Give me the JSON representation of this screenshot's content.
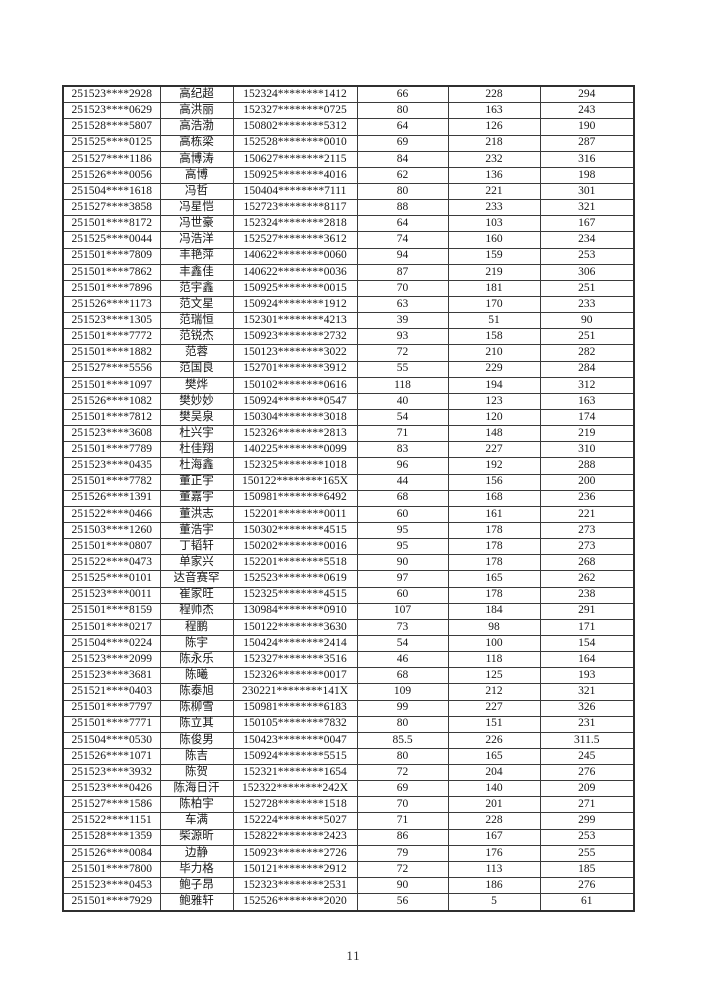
{
  "document": {
    "page_number": "11"
  },
  "colors": {
    "background": "#ffffff",
    "text": "#161616",
    "grid_line": "#3b3b3b"
  },
  "table": {
    "column_names": [
      "exam-number",
      "candidate-name",
      "id-number",
      "score-1",
      "score-2",
      "total-score"
    ],
    "rows": [
      [
        "251523****2928",
        "高纪超",
        "152324********1412",
        "66",
        "228",
        "294"
      ],
      [
        "251523****0629",
        "高洪丽",
        "152327********0725",
        "80",
        "163",
        "243"
      ],
      [
        "251528****5807",
        "高浩渤",
        "150802********5312",
        "64",
        "126",
        "190"
      ],
      [
        "251525****0125",
        "高栋梁",
        "152528********0010",
        "69",
        "218",
        "287"
      ],
      [
        "251527****1186",
        "高博涛",
        "150627********2115",
        "84",
        "232",
        "316"
      ],
      [
        "251526****0056",
        "高博",
        "150925********4016",
        "62",
        "136",
        "198"
      ],
      [
        "251504****1618",
        "冯哲",
        "150404********7111",
        "80",
        "221",
        "301"
      ],
      [
        "251527****3858",
        "冯星恺",
        "152723********8117",
        "88",
        "233",
        "321"
      ],
      [
        "251501****8172",
        "冯世豪",
        "152324********2818",
        "64",
        "103",
        "167"
      ],
      [
        "251525****0044",
        "冯浩洋",
        "152527********3612",
        "74",
        "160",
        "234"
      ],
      [
        "251501****7809",
        "丰艳萍",
        "140622********0060",
        "94",
        "159",
        "253"
      ],
      [
        "251501****7862",
        "丰鑫佳",
        "140622********0036",
        "87",
        "219",
        "306"
      ],
      [
        "251501****7896",
        "范宇鑫",
        "150925********0015",
        "70",
        "181",
        "251"
      ],
      [
        "251526****1173",
        "范文星",
        "150924********1912",
        "63",
        "170",
        "233"
      ],
      [
        "251523****1305",
        "范瑞恒",
        "152301********4213",
        "39",
        "51",
        "90"
      ],
      [
        "251501****7772",
        "范锐杰",
        "150923********2732",
        "93",
        "158",
        "251"
      ],
      [
        "251501****1882",
        "范蓉",
        "150123********3022",
        "72",
        "210",
        "282"
      ],
      [
        "251527****5556",
        "范国良",
        "152701********3912",
        "55",
        "229",
        "284"
      ],
      [
        "251501****1097",
        "樊烨",
        "150102********0616",
        "118",
        "194",
        "312"
      ],
      [
        "251526****1082",
        "樊妙妙",
        "150924********0547",
        "40",
        "123",
        "163"
      ],
      [
        "251501****7812",
        "樊吴泉",
        "150304********3018",
        "54",
        "120",
        "174"
      ],
      [
        "251523****3608",
        "杜兴宇",
        "152326********2813",
        "71",
        "148",
        "219"
      ],
      [
        "251501****7789",
        "杜佳翔",
        "140225********0099",
        "83",
        "227",
        "310"
      ],
      [
        "251523****0435",
        "杜海鑫",
        "152325********1018",
        "96",
        "192",
        "288"
      ],
      [
        "251501****7782",
        "董正宇",
        "150122********165X",
        "44",
        "156",
        "200"
      ],
      [
        "251526****1391",
        "董嘉宇",
        "150981********6492",
        "68",
        "168",
        "236"
      ],
      [
        "251522****0466",
        "董洪志",
        "152201********0011",
        "60",
        "161",
        "221"
      ],
      [
        "251503****1260",
        "董浩宇",
        "150302********4515",
        "95",
        "178",
        "273"
      ],
      [
        "251501****0807",
        "丁韬轩",
        "150202********0016",
        "95",
        "178",
        "273"
      ],
      [
        "251522****0473",
        "单家兴",
        "152201********5518",
        "90",
        "178",
        "268"
      ],
      [
        "251525****0101",
        "达音赛罕",
        "152523********0619",
        "97",
        "165",
        "262"
      ],
      [
        "251523****0011",
        "崔家旺",
        "152325********4515",
        "60",
        "178",
        "238"
      ],
      [
        "251501****8159",
        "程帅杰",
        "130984********0910",
        "107",
        "184",
        "291"
      ],
      [
        "251501****0217",
        "程鹏",
        "150122********3630",
        "73",
        "98",
        "171"
      ],
      [
        "251504****0224",
        "陈宇",
        "150424********2414",
        "54",
        "100",
        "154"
      ],
      [
        "251523****2099",
        "陈永乐",
        "152327********3516",
        "46",
        "118",
        "164"
      ],
      [
        "251523****3681",
        "陈曦",
        "152326********0017",
        "68",
        "125",
        "193"
      ],
      [
        "251521****0403",
        "陈泰旭",
        "230221********141X",
        "109",
        "212",
        "321"
      ],
      [
        "251501****7797",
        "陈柳雪",
        "150981********6183",
        "99",
        "227",
        "326"
      ],
      [
        "251501****7771",
        "陈立其",
        "150105********7832",
        "80",
        "151",
        "231"
      ],
      [
        "251504****0530",
        "陈俊男",
        "150423********0047",
        "85.5",
        "226",
        "311.5"
      ],
      [
        "251526****1071",
        "陈吉",
        "150924********5515",
        "80",
        "165",
        "245"
      ],
      [
        "251523****3932",
        "陈贺",
        "152321********1654",
        "72",
        "204",
        "276"
      ],
      [
        "251523****0426",
        "陈海日汗",
        "152322********242X",
        "69",
        "140",
        "209"
      ],
      [
        "251527****1586",
        "陈柏宇",
        "152728********1518",
        "70",
        "201",
        "271"
      ],
      [
        "251522****1151",
        "车满",
        "152224********5027",
        "71",
        "228",
        "299"
      ],
      [
        "251528****1359",
        "柴源昕",
        "152822********2423",
        "86",
        "167",
        "253"
      ],
      [
        "251526****0084",
        "边静",
        "150923********2726",
        "79",
        "176",
        "255"
      ],
      [
        "251501****7800",
        "毕力格",
        "150121********2912",
        "72",
        "113",
        "185"
      ],
      [
        "251523****0453",
        "鲍子昂",
        "152323********2531",
        "90",
        "186",
        "276"
      ],
      [
        "251501****7929",
        "鲍雅轩",
        "152526********2020",
        "56",
        "5",
        "61"
      ]
    ]
  }
}
